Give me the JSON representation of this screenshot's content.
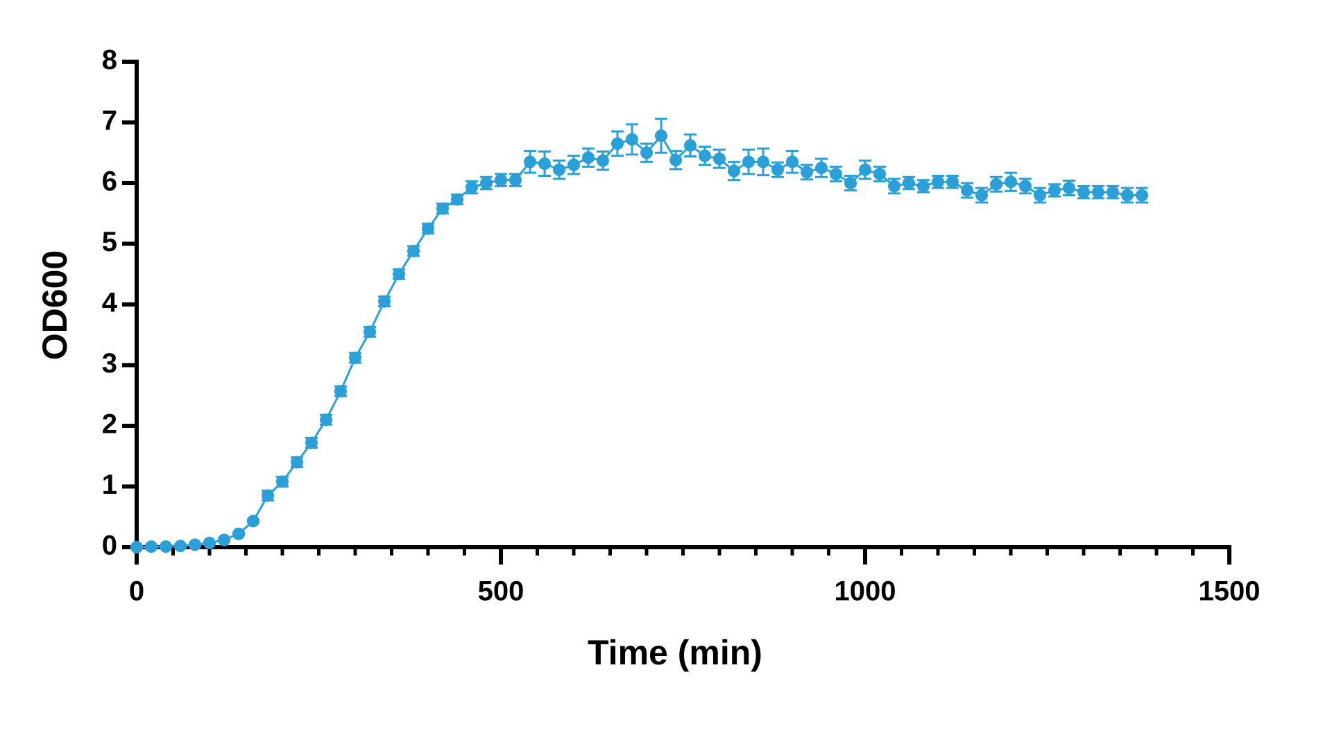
{
  "chart_data": {
    "type": "line",
    "x_label": "Time (min)",
    "y_label": "OD600",
    "color": "#2a9fd8",
    "x": [
      0,
      20,
      40,
      60,
      80,
      100,
      120,
      140,
      160,
      180,
      200,
      220,
      240,
      260,
      280,
      300,
      320,
      340,
      360,
      380,
      400,
      420,
      440,
      460,
      480,
      500,
      520,
      540,
      560,
      580,
      600,
      620,
      640,
      660,
      680,
      700,
      720,
      740,
      760,
      780,
      800,
      820,
      840,
      860,
      880,
      900,
      920,
      940,
      960,
      980,
      1000,
      1020,
      1040,
      1060,
      1080,
      1100,
      1120,
      1140,
      1160,
      1180,
      1200,
      1220,
      1240,
      1260,
      1280,
      1300,
      1320,
      1340,
      1360,
      1380
    ],
    "values": [
      0,
      0.01,
      0.01,
      0.02,
      0.04,
      0.07,
      0.12,
      0.22,
      0.43,
      0.85,
      1.08,
      1.4,
      1.72,
      2.1,
      2.57,
      3.12,
      3.55,
      4.05,
      4.5,
      4.88,
      5.25,
      5.58,
      5.73,
      5.93,
      6.0,
      6.05,
      6.05,
      6.35,
      6.32,
      6.22,
      6.3,
      6.42,
      6.37,
      6.65,
      6.72,
      6.5,
      6.78,
      6.38,
      6.62,
      6.45,
      6.4,
      6.2,
      6.35,
      6.35,
      6.22,
      6.35,
      6.18,
      6.25,
      6.15,
      6.0,
      6.22,
      6.15,
      5.95,
      6.0,
      5.95,
      6.02,
      6.02,
      5.88,
      5.8,
      5.98,
      6.02,
      5.95,
      5.8,
      5.88,
      5.92,
      5.85,
      5.85,
      5.85,
      5.8,
      5.8
    ],
    "errors": [
      0.02,
      0.02,
      0.02,
      0.02,
      0.02,
      0.02,
      0.02,
      0.02,
      0.02,
      0.08,
      0.08,
      0.08,
      0.08,
      0.08,
      0.08,
      0.08,
      0.08,
      0.08,
      0.08,
      0.08,
      0.08,
      0.08,
      0.08,
      0.1,
      0.1,
      0.1,
      0.1,
      0.18,
      0.2,
      0.15,
      0.15,
      0.15,
      0.15,
      0.2,
      0.25,
      0.15,
      0.28,
      0.15,
      0.18,
      0.15,
      0.15,
      0.15,
      0.2,
      0.22,
      0.12,
      0.18,
      0.12,
      0.15,
      0.12,
      0.12,
      0.15,
      0.12,
      0.12,
      0.1,
      0.1,
      0.1,
      0.1,
      0.12,
      0.12,
      0.12,
      0.15,
      0.12,
      0.12,
      0.1,
      0.12,
      0.1,
      0.1,
      0.1,
      0.12,
      0.12
    ],
    "xlim": [
      0,
      1500
    ],
    "xticks": [
      0,
      500,
      1000,
      1500
    ],
    "xminortick_step": 50,
    "ylim": [
      0,
      8
    ],
    "yticks": [
      0,
      1,
      2,
      3,
      4,
      5,
      6,
      7,
      8
    ]
  }
}
